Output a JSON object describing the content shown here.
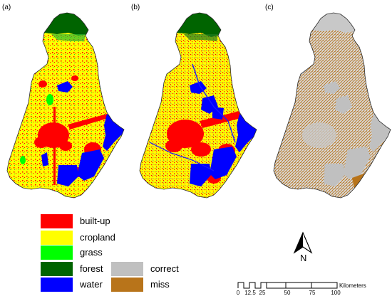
{
  "panels": {
    "a": {
      "label": "(a)"
    },
    "b": {
      "label": "(b)"
    },
    "c": {
      "label": "(c)"
    }
  },
  "legend_landcover": [
    {
      "label": "built-up",
      "color": "#ff0000"
    },
    {
      "label": "cropland",
      "color": "#ffff00"
    },
    {
      "label": "grass",
      "color": "#00ff00"
    },
    {
      "label": "forest",
      "color": "#006400"
    },
    {
      "label": "water",
      "color": "#0000ff"
    }
  ],
  "legend_accuracy": [
    {
      "label": "correct",
      "color": "#c0c0c0"
    },
    {
      "label": "miss",
      "color": "#b8741a"
    }
  ],
  "north_arrow": {
    "letter": "N"
  },
  "scale_bar": {
    "unit": "Kilometers",
    "ticks": [
      "0",
      "12.5",
      "25",
      "50",
      "75",
      "100"
    ]
  },
  "colors": {
    "builtup": "#ff0000",
    "cropland": "#ffff00",
    "grass": "#00ff00",
    "forest": "#006400",
    "water": "#0000ff",
    "correct": "#c0c0c0",
    "miss": "#b8741a",
    "outline": "#2a2a2a"
  }
}
